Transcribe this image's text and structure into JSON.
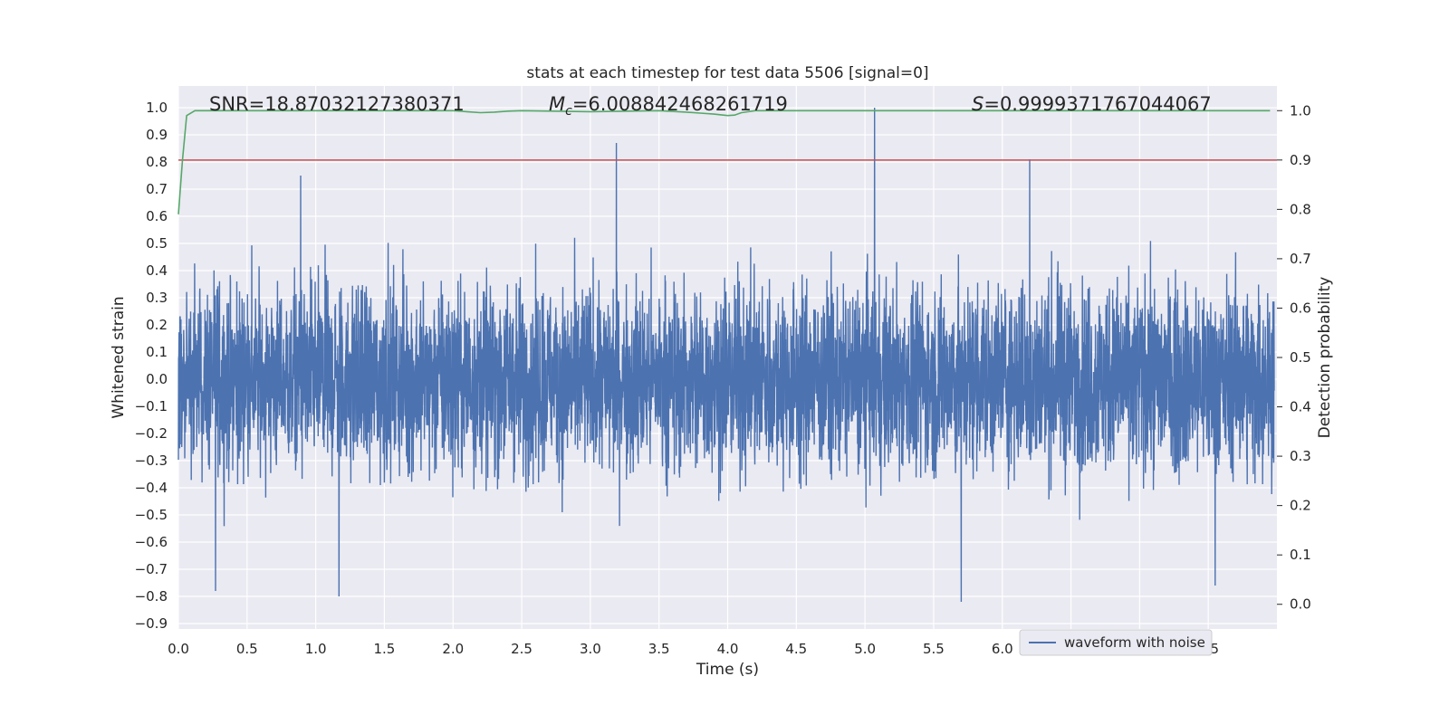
{
  "chart_data": {
    "type": "line",
    "title": "stats at each timestep for test data 5506 [signal=0]",
    "xlabel": "Time (s)",
    "ylabel": "Whitened strain",
    "y2label": "Detection probability",
    "xlim": [
      0.0,
      8.0
    ],
    "ylim": [
      -0.92,
      1.08
    ],
    "y2lim": [
      -0.05,
      1.05
    ],
    "x_ticks": [
      "0.0",
      "0.5",
      "1.0",
      "1.5",
      "2.0",
      "2.5",
      "3.0",
      "3.5",
      "4.0",
      "4.5",
      "5.0",
      "5.5",
      "6.0",
      "6.5",
      "7.0",
      "7.5"
    ],
    "y_ticks": [
      "1.0",
      "0.9",
      "0.8",
      "0.7",
      "0.6",
      "0.5",
      "0.4",
      "0.3",
      "0.2",
      "0.1",
      "0.0",
      "−0.1",
      "−0.2",
      "−0.3",
      "−0.4",
      "−0.5",
      "−0.6",
      "−0.7",
      "−0.8",
      "−0.9"
    ],
    "y2_ticks": [
      "1.0",
      "0.9",
      "0.8",
      "0.7",
      "0.6",
      "0.5",
      "0.4",
      "0.3",
      "0.2",
      "0.1",
      "0.0"
    ],
    "grid": true,
    "legend_placement": "lower-right",
    "annotations": {
      "snr": "SNR=18.87032127380371",
      "mc_symbol": "M",
      "mc_sub": "c",
      "mc_value": "=6.008842468261719",
      "s_symbol": "S",
      "s_value": "=0.9999371767044067"
    },
    "series": [
      {
        "name": "waveform with noise",
        "axis": "left",
        "color": "#4c72b0",
        "description": "dense noisy whitened strain, roughly within ±0.3 with spikes",
        "envelope_peaks": [
          {
            "x": 0.89,
            "y": 0.75
          },
          {
            "x": 3.19,
            "y": 0.87
          },
          {
            "x": 5.07,
            "y": 1.0
          },
          {
            "x": 6.2,
            "y": 0.81
          },
          {
            "x": 1.17,
            "y": -0.8
          },
          {
            "x": 0.27,
            "y": -0.78
          },
          {
            "x": 5.7,
            "y": -0.82
          },
          {
            "x": 7.55,
            "y": -0.76
          }
        ]
      },
      {
        "axis": "right",
        "color": "#55a868",
        "x": [
          0.0,
          0.03,
          0.06,
          0.12,
          0.5,
          1.0,
          1.5,
          2.0,
          2.1,
          2.2,
          2.3,
          2.4,
          2.5,
          3.0,
          3.5,
          3.7,
          3.8,
          3.9,
          4.0,
          4.05,
          4.1,
          4.2,
          4.5,
          5.0,
          6.0,
          7.0,
          7.95
        ],
        "values": [
          0.79,
          0.9,
          0.99,
          1.0,
          1.0,
          1.0,
          1.0,
          1.0,
          0.998,
          0.996,
          0.997,
          0.999,
          1.0,
          0.998,
          1.0,
          0.997,
          0.995,
          0.993,
          0.99,
          0.991,
          0.996,
          1.0,
          1.0,
          1.0,
          1.0,
          1.0,
          1.0
        ]
      },
      {
        "axis": "right",
        "color": "#c44e52",
        "type": "hline",
        "value": 0.9
      }
    ]
  }
}
